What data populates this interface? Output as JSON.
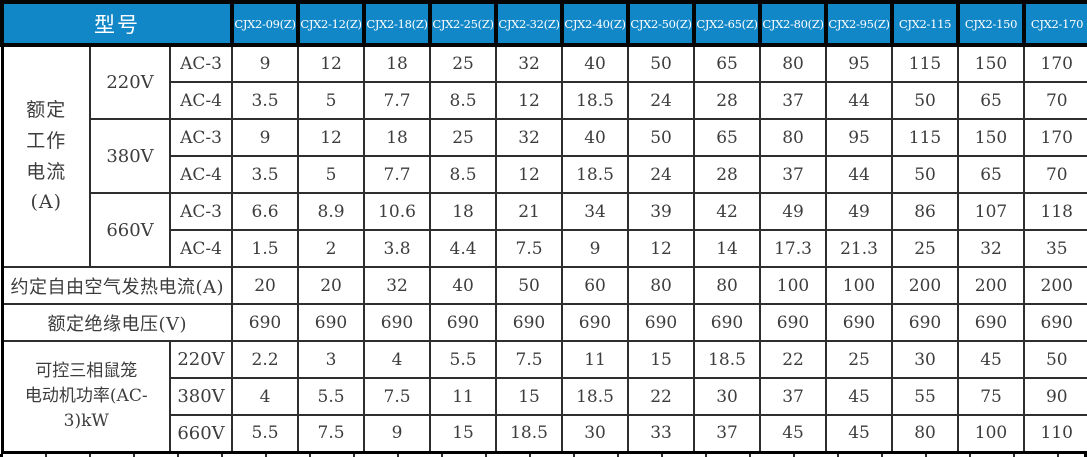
{
  "header": {
    "model_label": "型号",
    "models": [
      "CJX2-09(Z)",
      "CJX2-12(Z)",
      "CJX2-18(Z)",
      "CJX2-25(Z)",
      "CJX2-32(Z)",
      "CJX2-40(Z)",
      "CJX2-50(Z)",
      "CJX2-65(Z)",
      "CJX2-80(Z)",
      "CJX2-95(Z)",
      "CJX2-115",
      "CJX2-150",
      "CJX2-170"
    ]
  },
  "sections": [
    {
      "id": "rated-current",
      "label": "额定\n工作\n电流\n(A)",
      "groups": [
        {
          "voltage": "220V",
          "rows": [
            {
              "cls": "AC-3",
              "values": [
                "9",
                "12",
                "18",
                "25",
                "32",
                "40",
                "50",
                "65",
                "80",
                "95",
                "115",
                "150",
                "170"
              ]
            },
            {
              "cls": "AC-4",
              "values": [
                "3.5",
                "5",
                "7.7",
                "8.5",
                "12",
                "18.5",
                "24",
                "28",
                "37",
                "44",
                "50",
                "65",
                "70"
              ]
            }
          ]
        },
        {
          "voltage": "380V",
          "rows": [
            {
              "cls": "AC-3",
              "values": [
                "9",
                "12",
                "18",
                "25",
                "32",
                "40",
                "50",
                "65",
                "80",
                "95",
                "115",
                "150",
                "170"
              ]
            },
            {
              "cls": "AC-4",
              "values": [
                "3.5",
                "5",
                "7.7",
                "8.5",
                "12",
                "18.5",
                "24",
                "28",
                "37",
                "44",
                "50",
                "65",
                "70"
              ]
            }
          ]
        },
        {
          "voltage": "660V",
          "rows": [
            {
              "cls": "AC-3",
              "values": [
                "6.6",
                "8.9",
                "10.6",
                "18",
                "21",
                "34",
                "39",
                "42",
                "49",
                "49",
                "86",
                "107",
                "118"
              ]
            },
            {
              "cls": "AC-4",
              "values": [
                "1.5",
                "2",
                "3.8",
                "4.4",
                "7.5",
                "9",
                "12",
                "14",
                "17.3",
                "21.3",
                "25",
                "32",
                "35"
              ]
            }
          ]
        }
      ]
    },
    {
      "id": "thermal-current",
      "label": "约定自由空气发热电流(A)",
      "values": [
        "20",
        "20",
        "32",
        "40",
        "50",
        "60",
        "80",
        "80",
        "100",
        "100",
        "200",
        "200",
        "200"
      ]
    },
    {
      "id": "insulation-voltage",
      "label": "额定绝缘电压(V)",
      "values": [
        "690",
        "690",
        "690",
        "690",
        "690",
        "690",
        "690",
        "690",
        "690",
        "690",
        "690",
        "690",
        "690"
      ]
    },
    {
      "id": "motor-power",
      "label": "可控三相鼠笼\n电动机功率(AC-3)kW",
      "rows": [
        {
          "voltage": "220V",
          "values": [
            "2.2",
            "3",
            "4",
            "5.5",
            "7.5",
            "11",
            "15",
            "18.5",
            "22",
            "25",
            "30",
            "45",
            "50"
          ]
        },
        {
          "voltage": "380V",
          "values": [
            "4",
            "5.5",
            "7.5",
            "11",
            "15",
            "18.5",
            "22",
            "30",
            "37",
            "45",
            "55",
            "75",
            "90"
          ]
        },
        {
          "voltage": "660V",
          "values": [
            "5.5",
            "7.5",
            "9",
            "15",
            "18.5",
            "30",
            "33",
            "37",
            "45",
            "45",
            "80",
            "100",
            "110"
          ]
        }
      ]
    }
  ],
  "colors": {
    "header_bg": "#1287c7",
    "header_text": "#ffffff",
    "grid": "#2e2e2e",
    "body_text": "#3d3d3d"
  },
  "chart_data": {
    "type": "table",
    "columns": [
      "型号",
      "CJX2-09(Z)",
      "CJX2-12(Z)",
      "CJX2-18(Z)",
      "CJX2-25(Z)",
      "CJX2-32(Z)",
      "CJX2-40(Z)",
      "CJX2-50(Z)",
      "CJX2-65(Z)",
      "CJX2-80(Z)",
      "CJX2-95(Z)",
      "CJX2-115",
      "CJX2-150",
      "CJX2-170"
    ],
    "rows": [
      {
        "category": "额定工作电流(A)",
        "condition": "220V AC-3",
        "values": [
          9,
          12,
          18,
          25,
          32,
          40,
          50,
          65,
          80,
          95,
          115,
          150,
          170
        ]
      },
      {
        "category": "额定工作电流(A)",
        "condition": "220V AC-4",
        "values": [
          3.5,
          5,
          7.7,
          8.5,
          12,
          18.5,
          24,
          28,
          37,
          44,
          50,
          65,
          70
        ]
      },
      {
        "category": "额定工作电流(A)",
        "condition": "380V AC-3",
        "values": [
          9,
          12,
          18,
          25,
          32,
          40,
          50,
          65,
          80,
          95,
          115,
          150,
          170
        ]
      },
      {
        "category": "额定工作电流(A)",
        "condition": "380V AC-4",
        "values": [
          3.5,
          5,
          7.7,
          8.5,
          12,
          18.5,
          24,
          28,
          37,
          44,
          50,
          65,
          70
        ]
      },
      {
        "category": "额定工作电流(A)",
        "condition": "660V AC-3",
        "values": [
          6.6,
          8.9,
          10.6,
          18,
          21,
          34,
          39,
          42,
          49,
          49,
          86,
          107,
          118
        ]
      },
      {
        "category": "额定工作电流(A)",
        "condition": "660V AC-4",
        "values": [
          1.5,
          2,
          3.8,
          4.4,
          7.5,
          9,
          12,
          14,
          17.3,
          21.3,
          25,
          32,
          35
        ]
      },
      {
        "category": "约定自由空气发热电流(A)",
        "condition": "",
        "values": [
          20,
          20,
          32,
          40,
          50,
          60,
          80,
          80,
          100,
          100,
          200,
          200,
          200
        ]
      },
      {
        "category": "额定绝缘电压(V)",
        "condition": "",
        "values": [
          690,
          690,
          690,
          690,
          690,
          690,
          690,
          690,
          690,
          690,
          690,
          690,
          690
        ]
      },
      {
        "category": "可控三相鼠笼电动机功率(AC-3)kW",
        "condition": "220V",
        "values": [
          2.2,
          3,
          4,
          5.5,
          7.5,
          11,
          15,
          18.5,
          22,
          25,
          30,
          45,
          50
        ]
      },
      {
        "category": "可控三相鼠笼电动机功率(AC-3)kW",
        "condition": "380V",
        "values": [
          4,
          5.5,
          7.5,
          11,
          15,
          18.5,
          22,
          30,
          37,
          45,
          55,
          75,
          90
        ]
      },
      {
        "category": "可控三相鼠笼电动机功率(AC-3)kW",
        "condition": "660V",
        "values": [
          5.5,
          7.5,
          9,
          15,
          18.5,
          30,
          33,
          37,
          45,
          45,
          80,
          100,
          110
        ]
      }
    ]
  }
}
